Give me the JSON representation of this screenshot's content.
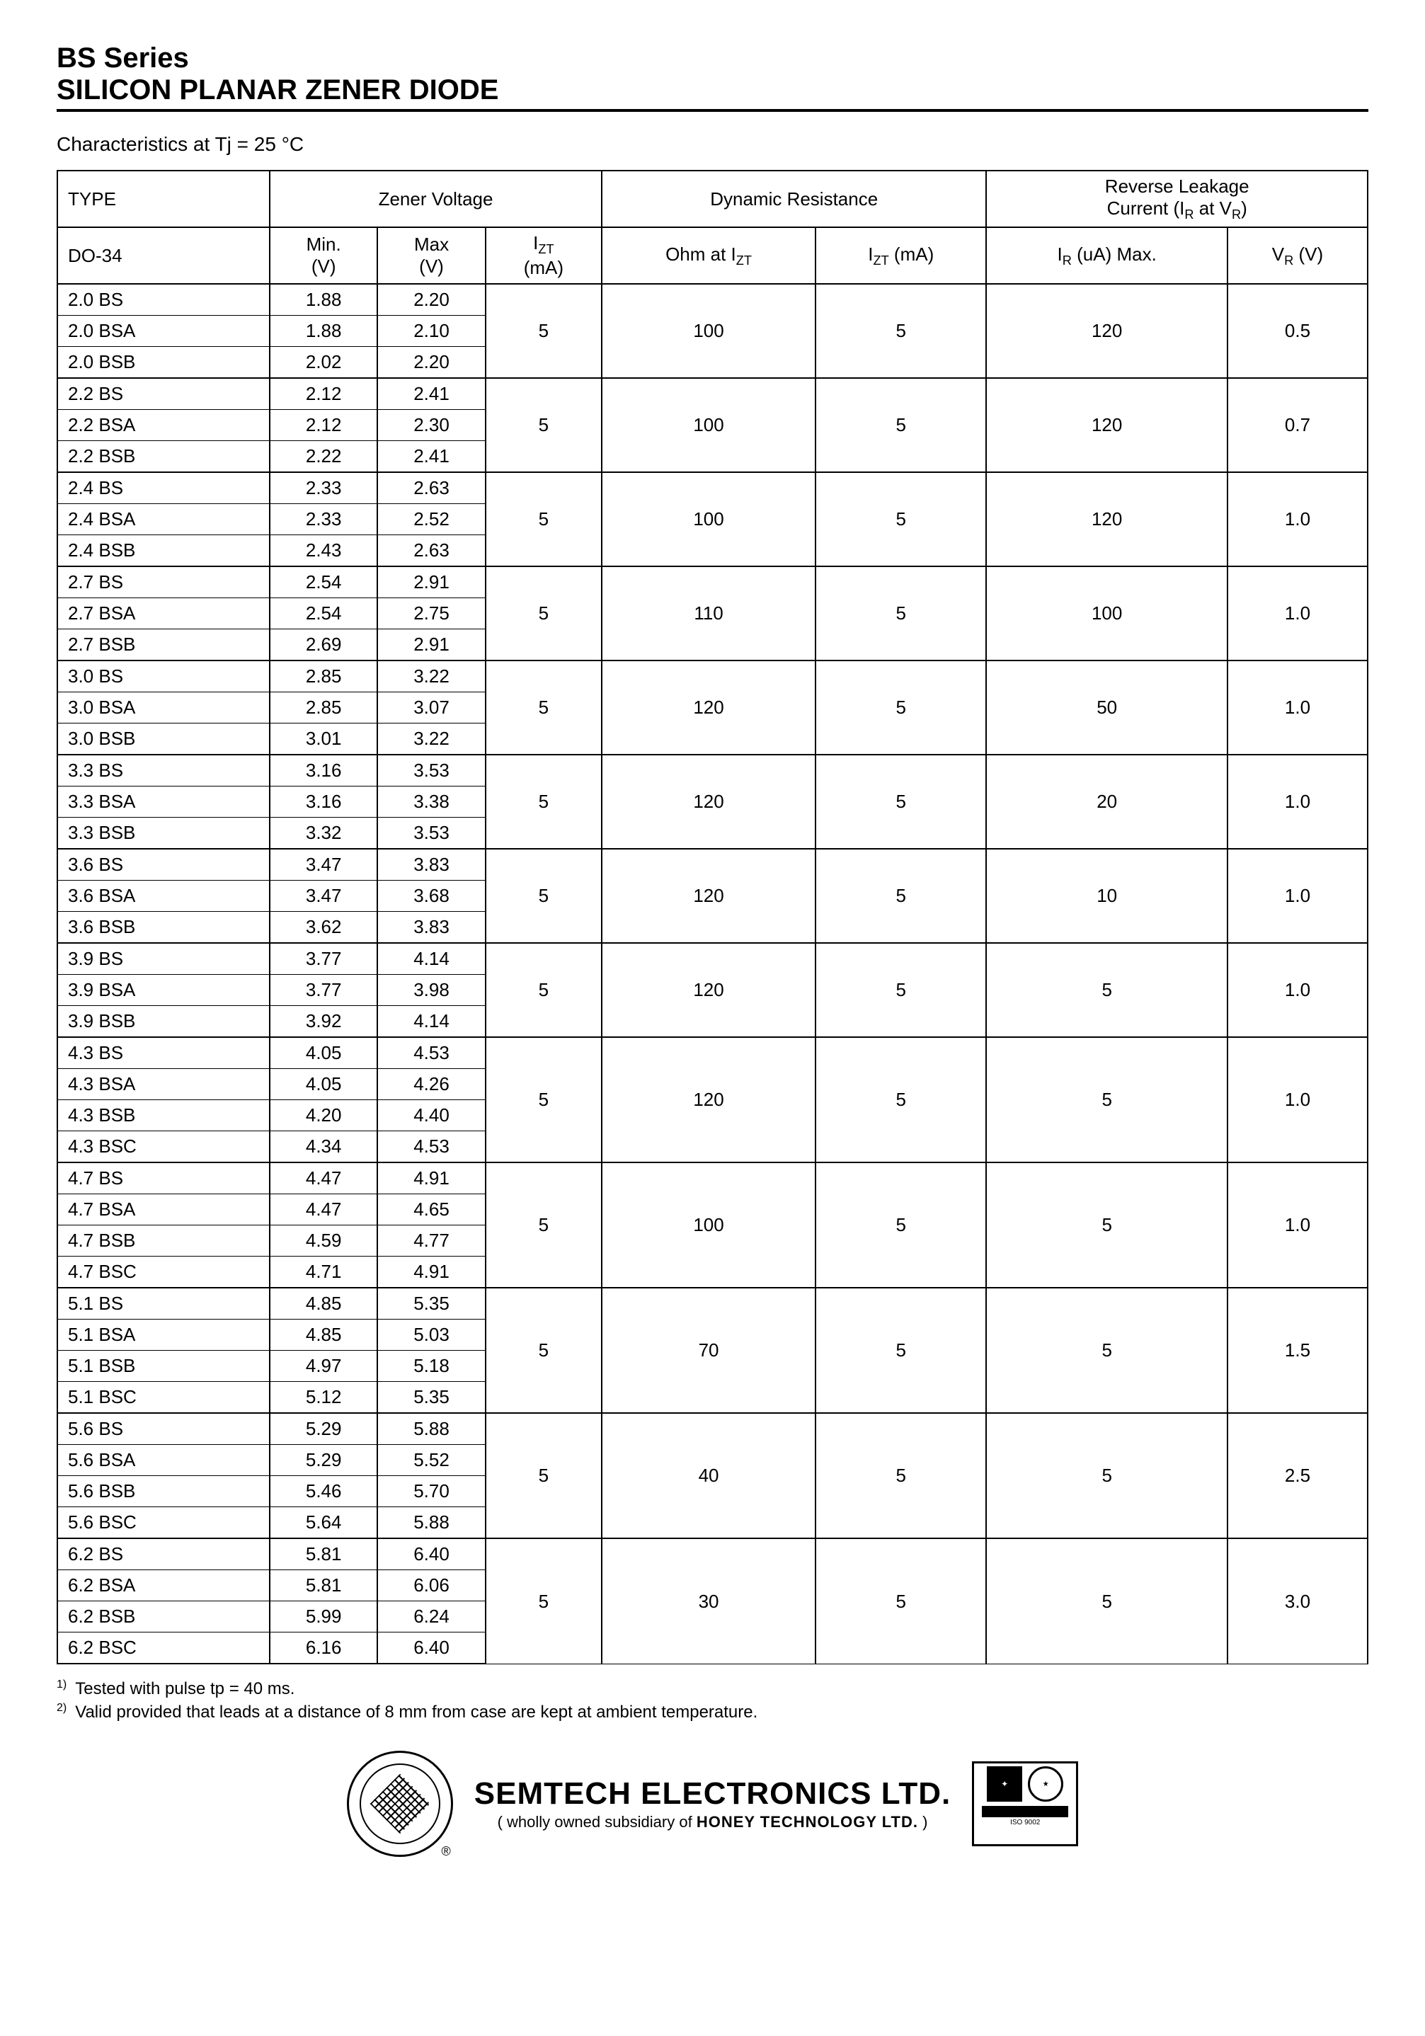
{
  "header": {
    "line1": "BS Series",
    "line2": "SILICON PLANAR ZENER DIODE"
  },
  "subtitle": "Characteristics at Tj = 25 °C",
  "table": {
    "head": {
      "type": "TYPE",
      "zener": "Zener Voltage",
      "dyn": "Dynamic Resistance",
      "rev": "Reverse Leakage Current (I_R at V_R)",
      "do34": "DO-34",
      "min": "Min.",
      "minU": "(V)",
      "max": "Max",
      "maxU": "(V)",
      "izt": "I_ZT",
      "iztU": "(mA)",
      "ohm": "Ohm at I_ZT",
      "iztma": "I_ZT (mA)",
      "ir": "I_R (uA) Max.",
      "vr": "V_R (V)"
    },
    "groups": [
      {
        "span": 3,
        "izt": "5",
        "ohm": "100",
        "iztma": "5",
        "ir": "120",
        "vr": "0.5",
        "rows": [
          {
            "t": "2.0 BS",
            "min": "1.88",
            "max": "2.20"
          },
          {
            "t": "2.0 BSA",
            "min": "1.88",
            "max": "2.10"
          },
          {
            "t": "2.0 BSB",
            "min": "2.02",
            "max": "2.20"
          }
        ]
      },
      {
        "span": 3,
        "izt": "5",
        "ohm": "100",
        "iztma": "5",
        "ir": "120",
        "vr": "0.7",
        "rows": [
          {
            "t": "2.2 BS",
            "min": "2.12",
            "max": "2.41"
          },
          {
            "t": "2.2 BSA",
            "min": "2.12",
            "max": "2.30"
          },
          {
            "t": "2.2 BSB",
            "min": "2.22",
            "max": "2.41"
          }
        ]
      },
      {
        "span": 3,
        "izt": "5",
        "ohm": "100",
        "iztma": "5",
        "ir": "120",
        "vr": "1.0",
        "rows": [
          {
            "t": "2.4 BS",
            "min": "2.33",
            "max": "2.63"
          },
          {
            "t": "2.4 BSA",
            "min": "2.33",
            "max": "2.52"
          },
          {
            "t": "2.4 BSB",
            "min": "2.43",
            "max": "2.63"
          }
        ]
      },
      {
        "span": 3,
        "izt": "5",
        "ohm": "110",
        "iztma": "5",
        "ir": "100",
        "vr": "1.0",
        "rows": [
          {
            "t": "2.7 BS",
            "min": "2.54",
            "max": "2.91"
          },
          {
            "t": "2.7 BSA",
            "min": "2.54",
            "max": "2.75"
          },
          {
            "t": "2.7 BSB",
            "min": "2.69",
            "max": "2.91"
          }
        ]
      },
      {
        "span": 3,
        "izt": "5",
        "ohm": "120",
        "iztma": "5",
        "ir": "50",
        "vr": "1.0",
        "rows": [
          {
            "t": "3.0 BS",
            "min": "2.85",
            "max": "3.22"
          },
          {
            "t": "3.0 BSA",
            "min": "2.85",
            "max": "3.07"
          },
          {
            "t": "3.0 BSB",
            "min": "3.01",
            "max": "3.22"
          }
        ]
      },
      {
        "span": 3,
        "izt": "5",
        "ohm": "120",
        "iztma": "5",
        "ir": "20",
        "vr": "1.0",
        "rows": [
          {
            "t": "3.3 BS",
            "min": "3.16",
            "max": "3.53"
          },
          {
            "t": "3.3 BSA",
            "min": "3.16",
            "max": "3.38"
          },
          {
            "t": "3.3 BSB",
            "min": "3.32",
            "max": "3.53"
          }
        ]
      },
      {
        "span": 3,
        "izt": "5",
        "ohm": "120",
        "iztma": "5",
        "ir": "10",
        "vr": "1.0",
        "rows": [
          {
            "t": "3.6 BS",
            "min": "3.47",
            "max": "3.83"
          },
          {
            "t": "3.6 BSA",
            "min": "3.47",
            "max": "3.68"
          },
          {
            "t": "3.6 BSB",
            "min": "3.62",
            "max": "3.83"
          }
        ]
      },
      {
        "span": 3,
        "izt": "5",
        "ohm": "120",
        "iztma": "5",
        "ir": "5",
        "vr": "1.0",
        "rows": [
          {
            "t": "3.9 BS",
            "min": "3.77",
            "max": "4.14"
          },
          {
            "t": "3.9 BSA",
            "min": "3.77",
            "max": "3.98"
          },
          {
            "t": "3.9 BSB",
            "min": "3.92",
            "max": "4.14"
          }
        ]
      },
      {
        "span": 4,
        "izt": "5",
        "ohm": "120",
        "iztma": "5",
        "ir": "5",
        "vr": "1.0",
        "rows": [
          {
            "t": "4.3 BS",
            "min": "4.05",
            "max": "4.53"
          },
          {
            "t": "4.3 BSA",
            "min": "4.05",
            "max": "4.26"
          },
          {
            "t": "4.3 BSB",
            "min": "4.20",
            "max": "4.40"
          },
          {
            "t": "4.3 BSC",
            "min": "4.34",
            "max": "4.53"
          }
        ]
      },
      {
        "span": 4,
        "izt": "5",
        "ohm": "100",
        "iztma": "5",
        "ir": "5",
        "vr": "1.0",
        "rows": [
          {
            "t": "4.7 BS",
            "min": "4.47",
            "max": "4.91"
          },
          {
            "t": "4.7 BSA",
            "min": "4.47",
            "max": "4.65"
          },
          {
            "t": "4.7 BSB",
            "min": "4.59",
            "max": "4.77"
          },
          {
            "t": "4.7 BSC",
            "min": "4.71",
            "max": "4.91"
          }
        ]
      },
      {
        "span": 4,
        "izt": "5",
        "ohm": "70",
        "iztma": "5",
        "ir": "5",
        "vr": "1.5",
        "rows": [
          {
            "t": "5.1 BS",
            "min": "4.85",
            "max": "5.35"
          },
          {
            "t": "5.1 BSA",
            "min": "4.85",
            "max": "5.03"
          },
          {
            "t": "5.1 BSB",
            "min": "4.97",
            "max": "5.18"
          },
          {
            "t": "5.1 BSC",
            "min": "5.12",
            "max": "5.35"
          }
        ]
      },
      {
        "span": 4,
        "izt": "5",
        "ohm": "40",
        "iztma": "5",
        "ir": "5",
        "vr": "2.5",
        "rows": [
          {
            "t": "5.6 BS",
            "min": "5.29",
            "max": "5.88"
          },
          {
            "t": "5.6 BSA",
            "min": "5.29",
            "max": "5.52"
          },
          {
            "t": "5.6 BSB",
            "min": "5.46",
            "max": "5.70"
          },
          {
            "t": "5.6 BSC",
            "min": "5.64",
            "max": "5.88"
          }
        ]
      },
      {
        "span": 4,
        "izt": "5",
        "ohm": "30",
        "iztma": "5",
        "ir": "5",
        "vr": "3.0",
        "rows": [
          {
            "t": "6.2 BS",
            "min": "5.81",
            "max": "6.40"
          },
          {
            "t": "6.2 BSA",
            "min": "5.81",
            "max": "6.06"
          },
          {
            "t": "6.2 BSB",
            "min": "5.99",
            "max": "6.24"
          },
          {
            "t": "6.2 BSC",
            "min": "6.16",
            "max": "6.40"
          }
        ]
      }
    ]
  },
  "footnotes": {
    "n1": "Tested with pulse tp = 40 ms.",
    "n2": "Valid provided that leads at a distance of 8 mm from case are kept at ambient temperature."
  },
  "footer": {
    "company": "SEMTECH ELECTRONICS LTD.",
    "sub_pre": "( wholly owned subsidiary of ",
    "sub_bold": "HONEY TECHNOLOGY LTD.",
    "sub_post": " )"
  }
}
